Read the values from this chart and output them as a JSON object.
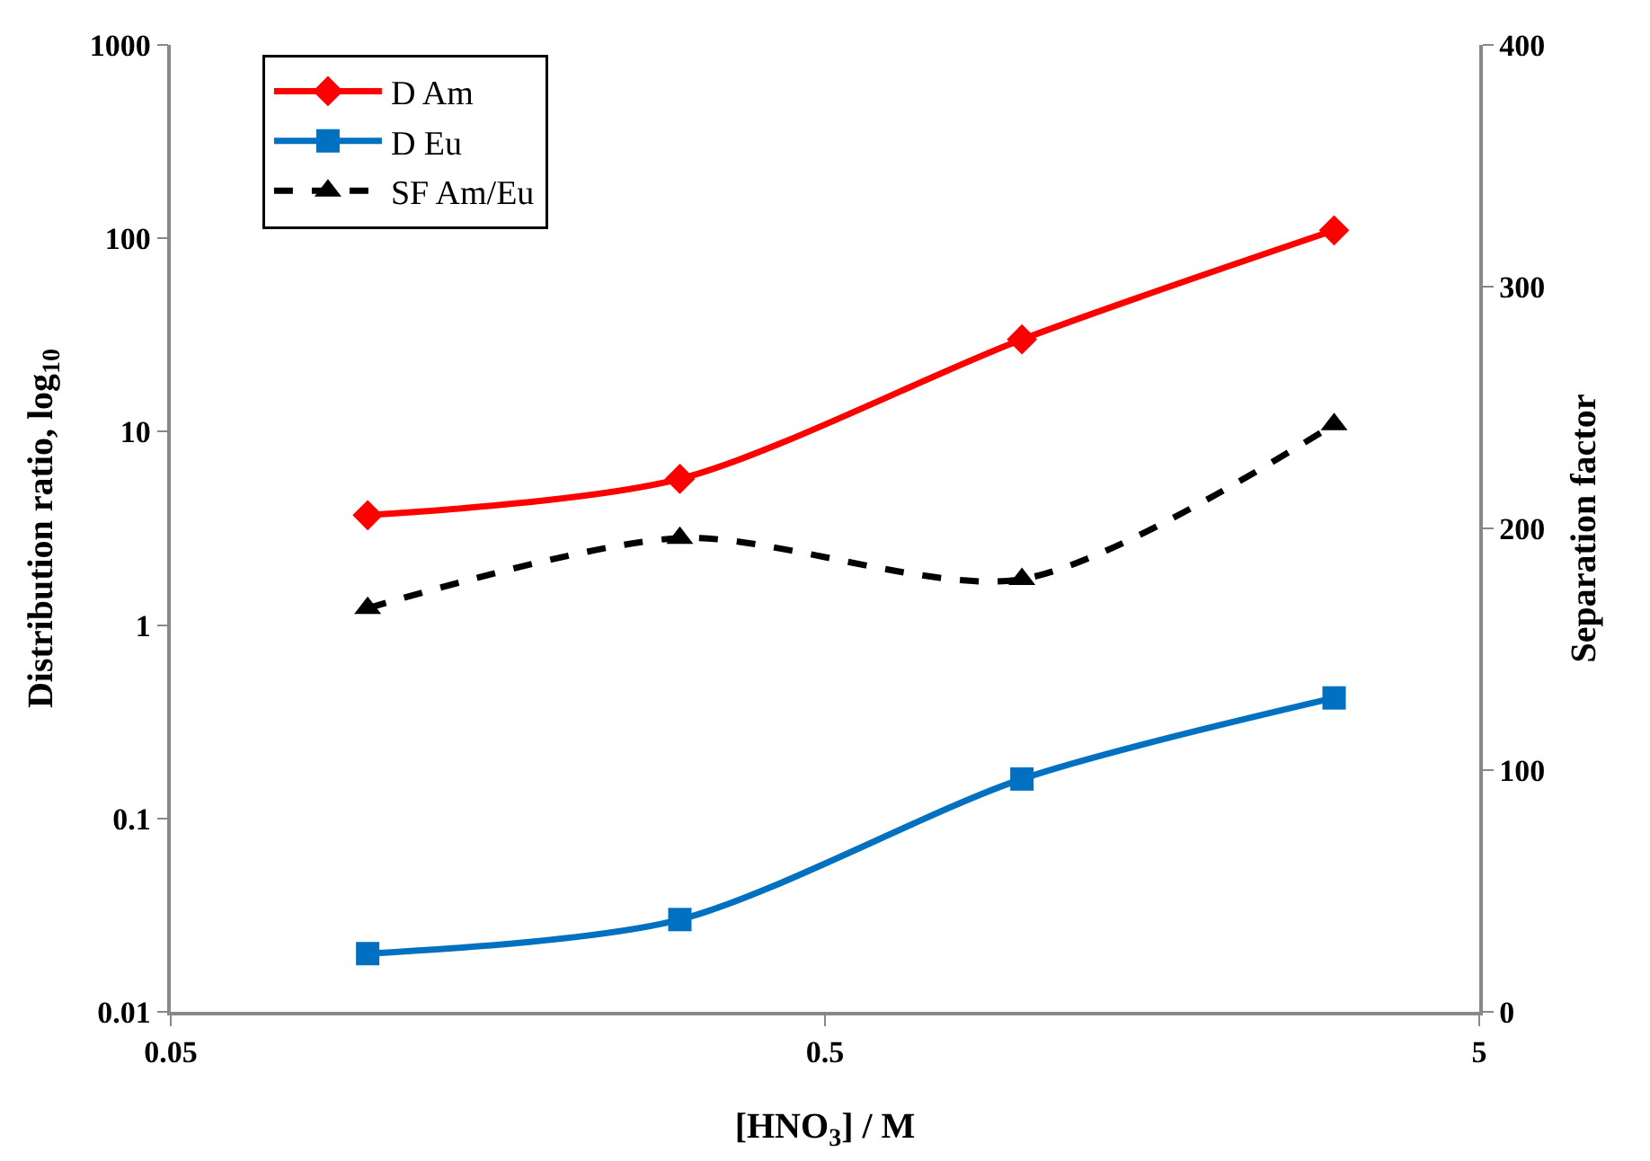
{
  "chart_data": {
    "type": "line",
    "xlabel": "[HNO$_{3}$] / M",
    "ylabel": "Distribution ratio, log$_{10}$",
    "y2label": "Separation factor",
    "x": [
      0.1,
      0.3,
      1,
      3
    ],
    "log": "xy",
    "series": [
      {
        "name": "D Am",
        "color": "#ff0000",
        "values": [
          3.7,
          5.7,
          30,
          110
        ],
        "marker": "diamond",
        "line_style": "solid"
      },
      {
        "name": "D Eu",
        "color": "#0070c0",
        "values": [
          0.02,
          0.03,
          0.16,
          0.42
        ],
        "marker": "square",
        "line_style": "solid"
      },
      {
        "name": "SF Am/Eu",
        "color": "#000000",
        "values": [
          167,
          196,
          179,
          243
        ],
        "marker": "triangle",
        "line_style": "dashed",
        "axis": "y2"
      }
    ],
    "xlim": [
      0.05,
      5
    ],
    "xticks": [
      0.05,
      0.5,
      5
    ],
    "ylim": [
      0.01,
      1000
    ],
    "yticks": [
      0.01,
      0.1,
      1,
      10,
      100,
      1000
    ],
    "y2lim": [
      0,
      400
    ],
    "y2ticks": [
      0,
      100,
      200,
      300,
      400
    ],
    "legend": "top left"
  }
}
